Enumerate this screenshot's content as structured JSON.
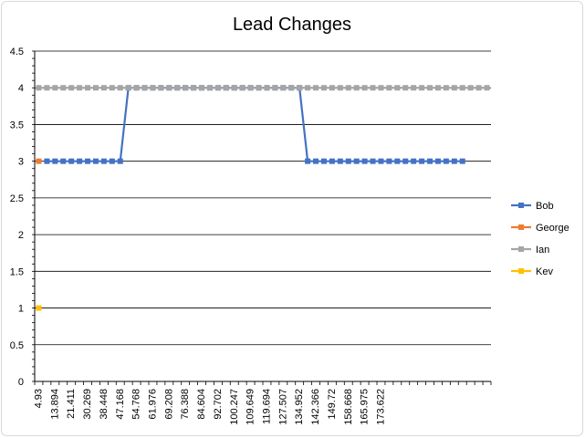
{
  "chart_data": {
    "type": "line",
    "title": "Lead Changes",
    "xlabel": "",
    "ylabel": "",
    "ylim": [
      0,
      4.5
    ],
    "ytick_step": 0.5,
    "grid": true,
    "legend_position": "right",
    "x_tick_labels": [
      "4.93",
      "13.894",
      "21.411",
      "30.269",
      "38.448",
      "47.168",
      "54.768",
      "61.976",
      "69.208",
      "76.388",
      "84.604",
      "92.702",
      "100.247",
      "109.649",
      "119.694",
      "127.507",
      "134.952",
      "142.366",
      "149.72",
      "158.668",
      "165.975",
      "173.622"
    ],
    "x_category_count": 56,
    "series": [
      {
        "name": "Bob",
        "color": "#4472C4",
        "marker": "square",
        "values": [
          null,
          3,
          3,
          3,
          3,
          3,
          3,
          3,
          3,
          3,
          3,
          4,
          4,
          4,
          4,
          4,
          4,
          4,
          4,
          4,
          4,
          4,
          4,
          4,
          4,
          4,
          4,
          4,
          4,
          4,
          4,
          4,
          4,
          3,
          3,
          3,
          3,
          3,
          3,
          3,
          3,
          3,
          3,
          3,
          3,
          3,
          3,
          3,
          3,
          3,
          3,
          3,
          3,
          null,
          null,
          null
        ]
      },
      {
        "name": "George",
        "color": "#ED7D31",
        "marker": "square",
        "values": [
          3
        ]
      },
      {
        "name": "Ian",
        "color": "#A5A5A5",
        "marker": "square",
        "values": [
          4,
          4,
          4,
          4,
          4,
          4,
          4,
          4,
          4,
          4,
          4,
          4,
          4,
          4,
          4,
          4,
          4,
          4,
          4,
          4,
          4,
          4,
          4,
          4,
          4,
          4,
          4,
          4,
          4,
          4,
          4,
          4,
          4,
          4,
          4,
          4,
          4,
          4,
          4,
          4,
          4,
          4,
          4,
          4,
          4,
          4,
          4,
          4,
          4,
          4,
          4,
          4,
          4,
          4,
          4,
          4
        ]
      },
      {
        "name": "Kev",
        "color": "#FFC000",
        "marker": "square",
        "values": [
          1
        ]
      }
    ]
  }
}
